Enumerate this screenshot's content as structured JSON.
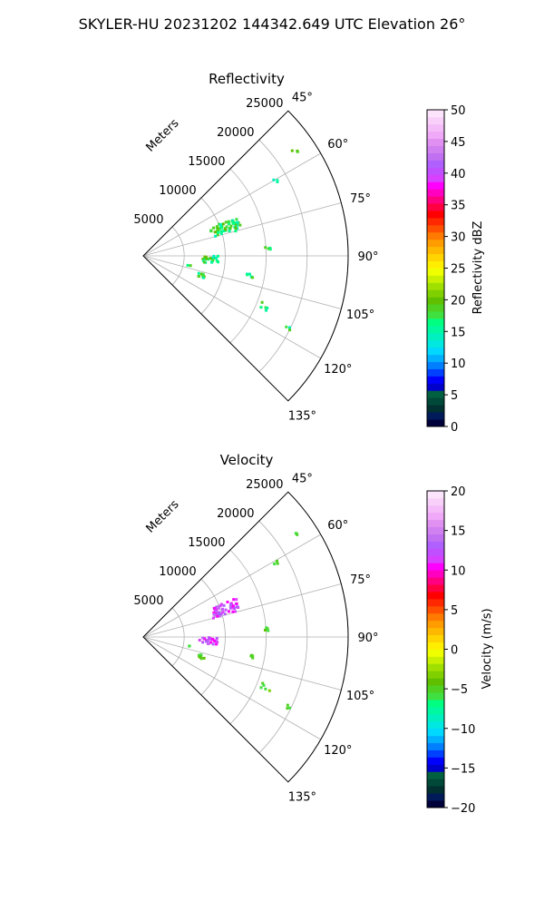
{
  "suptitle": "SKYLER-HU  20231202  144342.649 UTC Elevation 26°",
  "panels": [
    {
      "title": "Reflectivity",
      "range_label": "Meters",
      "colorbar": {
        "label": "Reflectivity dBZ",
        "ticks": [
          "0",
          "5",
          "10",
          "15",
          "20",
          "25",
          "30",
          "35",
          "40",
          "45",
          "50"
        ],
        "colors": [
          "#00003a",
          "#001a5a",
          "#003030",
          "#004838",
          "#006040",
          "#0000cc",
          "#0000ff",
          "#0040ff",
          "#0080ff",
          "#00b0ff",
          "#00d8ff",
          "#00e8e0",
          "#00f0c0",
          "#00f8a0",
          "#00ff80",
          "#40e040",
          "#50d020",
          "#60c000",
          "#80d000",
          "#a0e000",
          "#c8f000",
          "#f0ff00",
          "#ffee00",
          "#ffd400",
          "#ffb800",
          "#ff9c00",
          "#ff7a00",
          "#ff5000",
          "#ff2800",
          "#ff0000",
          "#ff0040",
          "#ff0080",
          "#ff00c0",
          "#ff00ff",
          "#d840ff",
          "#c050ff",
          "#b060ff",
          "#c070f0",
          "#d080f0",
          "#e090f0",
          "#f0a8f8",
          "#f4bcf8",
          "#f8d0fa",
          "#fce4fc"
        ]
      },
      "echo_level": 12
    },
    {
      "title": "Velocity",
      "range_label": "Meters",
      "colorbar": {
        "label": "Velocity (m/s)",
        "ticks": [
          "−20",
          "−15",
          "−10",
          "−5",
          "0",
          "5",
          "10",
          "15",
          "20"
        ],
        "colors": [
          "#00003a",
          "#001a5a",
          "#003030",
          "#004838",
          "#006040",
          "#0000cc",
          "#0000ff",
          "#0040ff",
          "#0080ff",
          "#00b0ff",
          "#00d8ff",
          "#00e8e0",
          "#00f0c0",
          "#00f8a0",
          "#00ff80",
          "#40e040",
          "#50d020",
          "#60c000",
          "#80d000",
          "#a0e000",
          "#c8f000",
          "#f0ff00",
          "#ffee00",
          "#ffd400",
          "#ffb800",
          "#ff9c00",
          "#ff7a00",
          "#ff5000",
          "#ff2800",
          "#ff0000",
          "#ff0040",
          "#ff0080",
          "#ff00c0",
          "#ff00ff",
          "#d840ff",
          "#c050ff",
          "#b060ff",
          "#c070f0",
          "#d080f0",
          "#e090f0",
          "#f0a8f8",
          "#f4bcf8",
          "#f8d0fa",
          "#fce4fc"
        ]
      }
    }
  ],
  "chart_data": {
    "type": "polar-sector",
    "theta_range_deg": [
      45,
      135
    ],
    "theta_ticks": [
      "45°",
      "60°",
      "75°",
      "90°",
      "105°",
      "120°",
      "135°"
    ],
    "r_ticks": [
      "5000",
      "10000",
      "15000",
      "20000",
      "25000"
    ],
    "r_max": 25000,
    "r_label": "Meters",
    "colors": {
      "reflectivity_main": "#00ff80",
      "velocity_main": "#c050ff",
      "velocity_secondary": "#60c000"
    }
  }
}
